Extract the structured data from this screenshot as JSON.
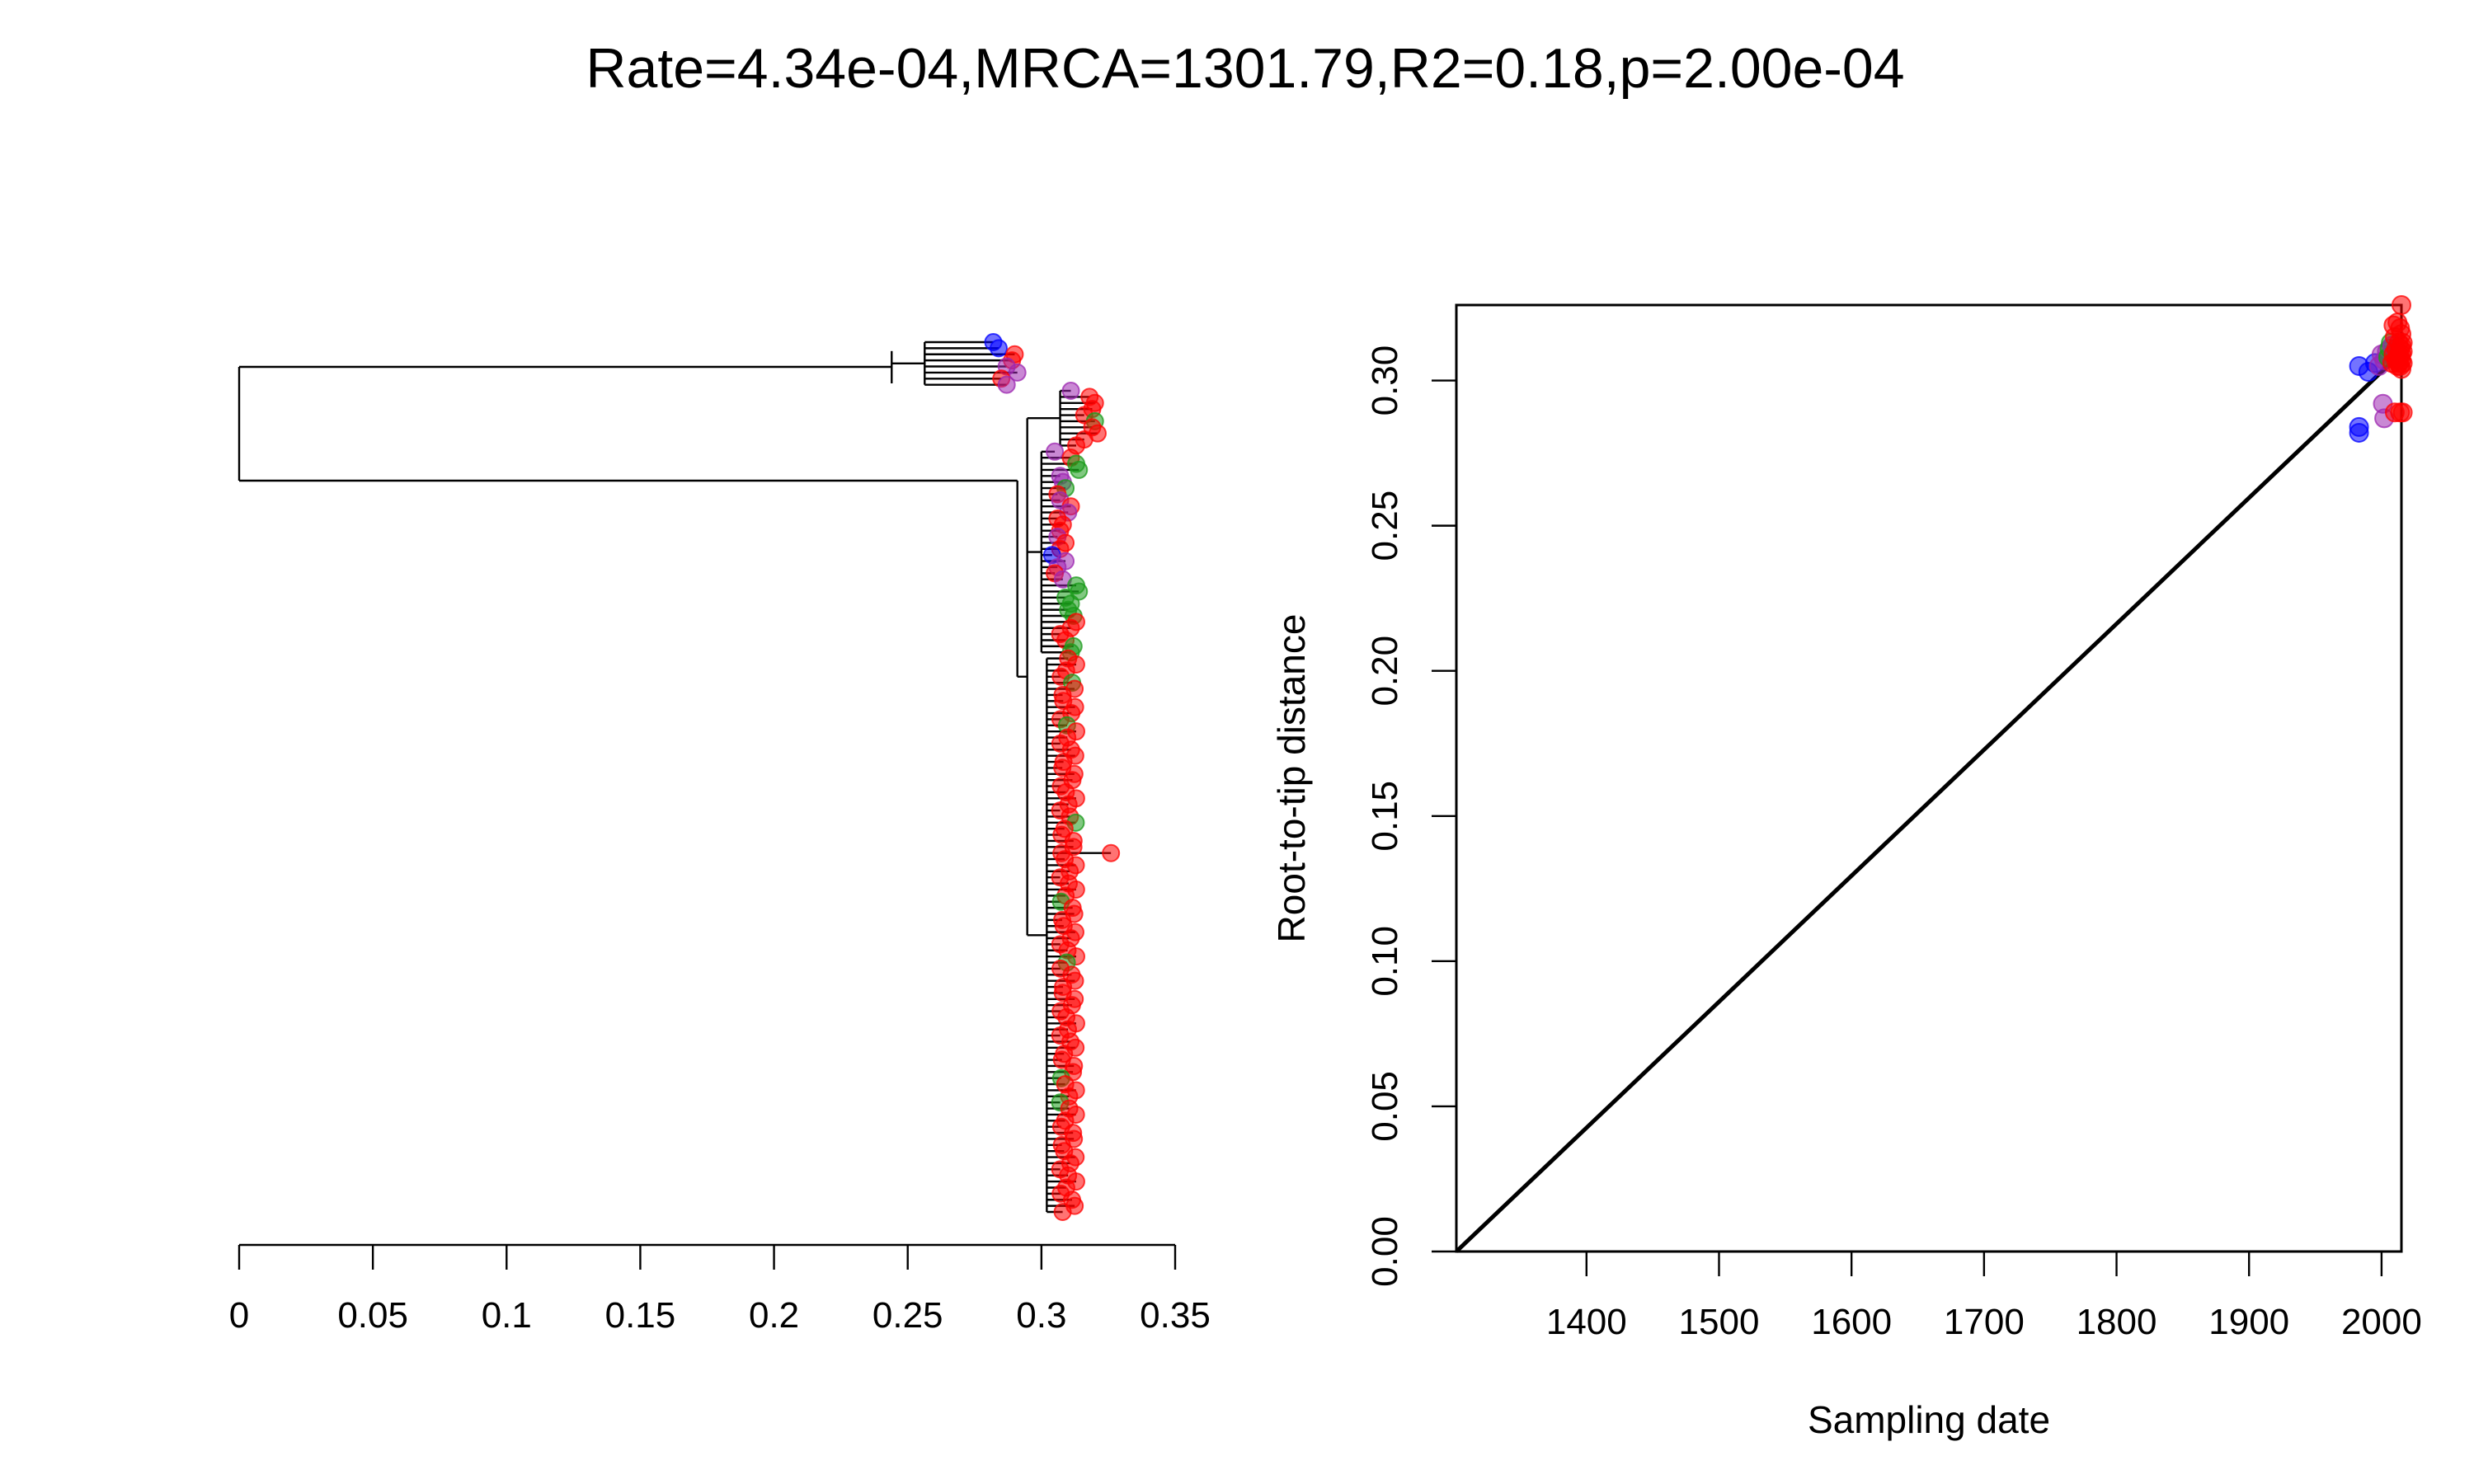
{
  "title": "Rate=4.34e-04,MRCA=1301.79,R2=0.18,p=2.00e-04",
  "colors": {
    "blue": "#0000ff",
    "red": "#ff0000",
    "purple": "#9c27b0",
    "green": "#1a9a1a",
    "black": "#000000"
  },
  "chart_data": [
    {
      "type": "tree",
      "xlabel": "",
      "ylabel": "",
      "xticks": [
        "0",
        "0.05",
        "0.1",
        "0.15",
        "0.2",
        "0.25",
        "0.3",
        "0.35"
      ],
      "xlim": [
        0,
        0.35
      ],
      "ntips": 144,
      "clade_a": {
        "root_depth": 0.0,
        "node_depth": 0.244,
        "tips": [
          {
            "depth": 0.282,
            "color": "blue"
          },
          {
            "depth": 0.284,
            "color": "blue"
          },
          {
            "depth": 0.29,
            "color": "red"
          },
          {
            "depth": 0.289,
            "color": "red"
          },
          {
            "depth": 0.287,
            "color": "purple"
          },
          {
            "depth": 0.291,
            "color": "purple"
          },
          {
            "depth": 0.285,
            "color": "red"
          },
          {
            "depth": 0.287,
            "color": "purple"
          }
        ]
      },
      "clade_b": {
        "node_depth": 0.291,
        "upper_tips": [
          {
            "depth": 0.311,
            "color": "purple"
          },
          {
            "depth": 0.318,
            "color": "red"
          },
          {
            "depth": 0.32,
            "color": "red"
          },
          {
            "depth": 0.319,
            "color": "red"
          },
          {
            "depth": 0.316,
            "color": "red"
          },
          {
            "depth": 0.32,
            "color": "green"
          },
          {
            "depth": 0.319,
            "color": "red"
          },
          {
            "depth": 0.321,
            "color": "red"
          },
          {
            "depth": 0.316,
            "color": "red"
          },
          {
            "depth": 0.313,
            "color": "red"
          }
        ],
        "mid_tips": [
          {
            "depth": 0.305,
            "color": "purple"
          },
          {
            "depth": 0.311,
            "color": "red"
          },
          {
            "depth": 0.313,
            "color": "green"
          },
          {
            "depth": 0.314,
            "color": "green"
          },
          {
            "depth": 0.307,
            "color": "purple"
          },
          {
            "depth": 0.308,
            "color": "purple"
          },
          {
            "depth": 0.309,
            "color": "green"
          },
          {
            "depth": 0.306,
            "color": "red"
          },
          {
            "depth": 0.307,
            "color": "purple"
          },
          {
            "depth": 0.311,
            "color": "red"
          },
          {
            "depth": 0.31,
            "color": "purple"
          },
          {
            "depth": 0.306,
            "color": "red"
          },
          {
            "depth": 0.308,
            "color": "red"
          },
          {
            "depth": 0.307,
            "color": "red"
          },
          {
            "depth": 0.306,
            "color": "purple"
          },
          {
            "depth": 0.309,
            "color": "red"
          },
          {
            "depth": 0.307,
            "color": "red"
          },
          {
            "depth": 0.304,
            "color": "blue"
          },
          {
            "depth": 0.309,
            "color": "purple"
          },
          {
            "depth": 0.306,
            "color": "purple"
          },
          {
            "depth": 0.305,
            "color": "red"
          },
          {
            "depth": 0.308,
            "color": "purple"
          },
          {
            "depth": 0.313,
            "color": "green"
          },
          {
            "depth": 0.314,
            "color": "green"
          },
          {
            "depth": 0.309,
            "color": "green"
          },
          {
            "depth": 0.311,
            "color": "green"
          },
          {
            "depth": 0.31,
            "color": "green"
          },
          {
            "depth": 0.312,
            "color": "green"
          },
          {
            "depth": 0.313,
            "color": "red"
          },
          {
            "depth": 0.311,
            "color": "red"
          },
          {
            "depth": 0.307,
            "color": "red"
          },
          {
            "depth": 0.309,
            "color": "red"
          },
          {
            "depth": 0.312,
            "color": "green"
          },
          {
            "depth": 0.311,
            "color": "green"
          }
        ],
        "lower_tips_count": 92,
        "lower_tip_depth_range": [
          0.307,
          0.313
        ],
        "outlier_tip": {
          "depth": 0.326,
          "color": "red"
        }
      }
    },
    {
      "type": "scatter",
      "title": "",
      "xlabel": "Sampling date",
      "ylabel": "Root-to-tip distance",
      "xlim": [
        1301.79,
        2015
      ],
      "ylim": [
        0,
        0.326
      ],
      "xticks": [
        1400,
        1500,
        1600,
        1700,
        1800,
        1900,
        2000
      ],
      "yticks": [
        "0.00",
        "0.05",
        "0.10",
        "0.15",
        "0.20",
        "0.25",
        "0.30"
      ],
      "regression": {
        "x": [
          1301.79,
          2015
        ],
        "y": [
          0.0,
          0.3095
        ]
      },
      "points": [
        {
          "x": 1983,
          "y": 0.305,
          "color": "blue"
        },
        {
          "x": 1983,
          "y": 0.284,
          "color": "blue"
        },
        {
          "x": 1983,
          "y": 0.282,
          "color": "blue"
        },
        {
          "x": 1990,
          "y": 0.303,
          "color": "blue"
        },
        {
          "x": 1995,
          "y": 0.306,
          "color": "blue"
        },
        {
          "x": 1998,
          "y": 0.305,
          "color": "purple"
        },
        {
          "x": 2000,
          "y": 0.309,
          "color": "purple"
        },
        {
          "x": 2002,
          "y": 0.307,
          "color": "purple"
        },
        {
          "x": 2001,
          "y": 0.292,
          "color": "purple"
        },
        {
          "x": 2002,
          "y": 0.287,
          "color": "purple"
        },
        {
          "x": 2004,
          "y": 0.31,
          "color": "purple"
        },
        {
          "x": 2005,
          "y": 0.308,
          "color": "green"
        },
        {
          "x": 2006,
          "y": 0.311,
          "color": "green"
        },
        {
          "x": 2007,
          "y": 0.313,
          "color": "green"
        },
        {
          "x": 2008,
          "y": 0.312,
          "color": "purple"
        },
        {
          "x": 2008,
          "y": 0.306,
          "color": "red"
        },
        {
          "x": 2009,
          "y": 0.319,
          "color": "red"
        },
        {
          "x": 2009,
          "y": 0.309,
          "color": "red"
        },
        {
          "x": 2010,
          "y": 0.315,
          "color": "red"
        },
        {
          "x": 2010,
          "y": 0.289,
          "color": "red"
        },
        {
          "x": 2011,
          "y": 0.311,
          "color": "red"
        },
        {
          "x": 2011,
          "y": 0.307,
          "color": "red"
        },
        {
          "x": 2012,
          "y": 0.32,
          "color": "red"
        },
        {
          "x": 2012,
          "y": 0.308,
          "color": "red"
        },
        {
          "x": 2012,
          "y": 0.305,
          "color": "red"
        },
        {
          "x": 2013,
          "y": 0.313,
          "color": "red"
        },
        {
          "x": 2013,
          "y": 0.309,
          "color": "red"
        },
        {
          "x": 2013,
          "y": 0.306,
          "color": "red"
        },
        {
          "x": 2014,
          "y": 0.318,
          "color": "red"
        },
        {
          "x": 2014,
          "y": 0.311,
          "color": "red"
        },
        {
          "x": 2014,
          "y": 0.308,
          "color": "red"
        },
        {
          "x": 2014,
          "y": 0.305,
          "color": "red"
        },
        {
          "x": 2014,
          "y": 0.289,
          "color": "red"
        },
        {
          "x": 2015,
          "y": 0.326,
          "color": "red"
        },
        {
          "x": 2015,
          "y": 0.316,
          "color": "red"
        },
        {
          "x": 2015,
          "y": 0.312,
          "color": "red"
        },
        {
          "x": 2015,
          "y": 0.309,
          "color": "red"
        },
        {
          "x": 2015,
          "y": 0.307,
          "color": "red"
        },
        {
          "x": 2015,
          "y": 0.304,
          "color": "red"
        },
        {
          "x": 2016,
          "y": 0.313,
          "color": "red"
        },
        {
          "x": 2016,
          "y": 0.31,
          "color": "red"
        },
        {
          "x": 2016,
          "y": 0.306,
          "color": "red"
        },
        {
          "x": 2016,
          "y": 0.289,
          "color": "red"
        }
      ]
    }
  ]
}
